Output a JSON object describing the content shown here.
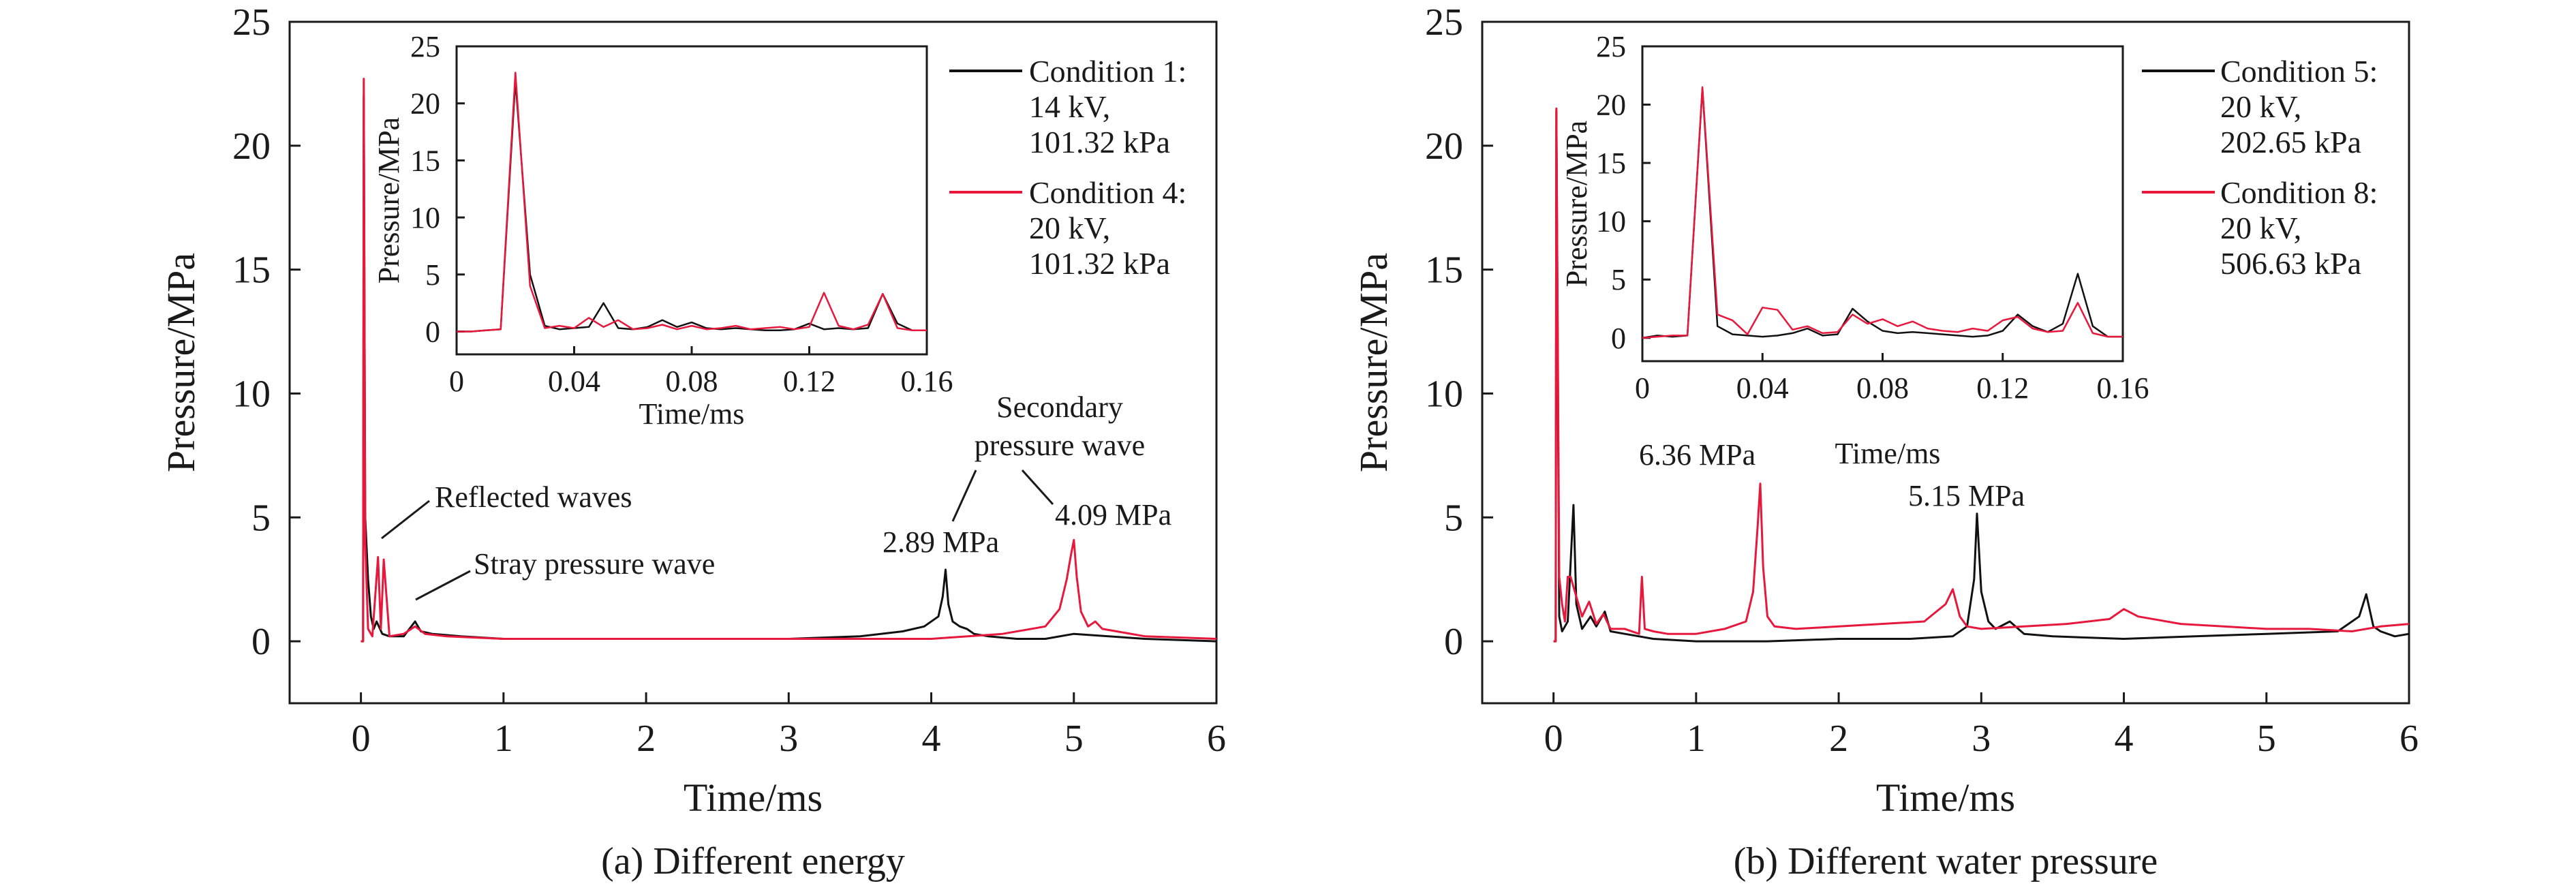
{
  "colors": {
    "condition_black": "#111111",
    "condition_red": "#e8173c",
    "axis": "#1a1a1a"
  },
  "chart_data": [
    {
      "type": "line",
      "caption": "(a) Different energy",
      "xlabel": "Time/ms",
      "ylabel": "Pressure/MPa",
      "xlim": [
        -0.5,
        6
      ],
      "ylim": [
        -2.5,
        25
      ],
      "xticks": [
        "0",
        "1",
        "2",
        "3",
        "4",
        "5",
        "6"
      ],
      "yticks": [
        "0",
        "5",
        "10",
        "15",
        "20",
        "25"
      ],
      "legend_placement": "top-right",
      "series": [
        {
          "name": "Condition 1:",
          "name_lines": [
            "Condition 1:",
            "14 kV,",
            "101.32 kPa"
          ],
          "color": "#111111",
          "x": [
            0,
            0.015,
            0.02,
            0.03,
            0.05,
            0.07,
            0.09,
            0.11,
            0.15,
            0.2,
            0.3,
            0.38,
            0.42,
            0.5,
            0.7,
            1.0,
            1.5,
            2.0,
            2.5,
            3.0,
            3.5,
            3.8,
            3.95,
            4.05,
            4.08,
            4.1,
            4.12,
            4.15,
            4.2,
            4.25,
            4.3,
            4.4,
            4.6,
            4.8,
            5.0,
            5.5,
            6.0
          ],
          "y": [
            0,
            0,
            22.0,
            5.0,
            2.5,
            1.0,
            0.5,
            0.8,
            0.3,
            0.2,
            0.2,
            0.8,
            0.4,
            0.3,
            0.2,
            0.1,
            0.1,
            0.1,
            0.1,
            0.1,
            0.2,
            0.4,
            0.6,
            1.0,
            1.8,
            2.89,
            1.5,
            0.8,
            0.6,
            0.5,
            0.3,
            0.2,
            0.1,
            0.1,
            0.3,
            0.1,
            0.0
          ]
        },
        {
          "name": "Condition 4:",
          "name_lines": [
            "Condition 4:",
            "20 kV,",
            "101.32 kPa"
          ],
          "color": "#e8173c",
          "x": [
            0,
            0.015,
            0.02,
            0.03,
            0.05,
            0.08,
            0.12,
            0.14,
            0.16,
            0.2,
            0.3,
            0.38,
            0.45,
            0.6,
            1.0,
            1.5,
            2.0,
            2.5,
            3.0,
            3.5,
            4.0,
            4.5,
            4.8,
            4.9,
            4.95,
            4.98,
            5.0,
            5.02,
            5.05,
            5.1,
            5.15,
            5.2,
            5.3,
            5.5,
            6.0
          ],
          "y": [
            0,
            0,
            22.7,
            4.0,
            0.5,
            0.2,
            3.4,
            0.5,
            3.3,
            0.2,
            0.3,
            0.6,
            0.3,
            0.2,
            0.1,
            0.1,
            0.1,
            0.1,
            0.1,
            0.1,
            0.1,
            0.3,
            0.6,
            1.3,
            2.5,
            3.5,
            4.09,
            2.6,
            1.2,
            0.6,
            0.8,
            0.5,
            0.4,
            0.2,
            0.1
          ]
        }
      ],
      "annotations": [
        {
          "text": "Reflected waves",
          "x": 0.13,
          "y": 3.8
        },
        {
          "text": "Stray pressure wave",
          "x": 0.38,
          "y": 1.2
        },
        {
          "text": "2.89 MPa",
          "x": 4.1,
          "y": 2.89
        },
        {
          "text": "Secondary",
          "x": null,
          "y": null
        },
        {
          "text": "pressure wave",
          "x": null,
          "y": null
        },
        {
          "text": "4.09 MPa",
          "x": 5.0,
          "y": 4.09
        }
      ],
      "inset": {
        "xlabel": "Time/ms",
        "ylabel": "Pressure/MPa",
        "xlim": [
          0,
          0.16
        ],
        "ylim": [
          -2,
          25
        ],
        "xticks": [
          "0",
          "0.04",
          "0.08",
          "0.12",
          "0.16"
        ],
        "yticks": [
          "0",
          "5",
          "10",
          "15",
          "20",
          "25"
        ],
        "series": [
          {
            "color": "#111111",
            "x": [
              0,
              0.005,
              0.01,
              0.015,
              0.02,
              0.025,
              0.03,
              0.035,
              0.04,
              0.045,
              0.05,
              0.055,
              0.06,
              0.065,
              0.07,
              0.075,
              0.08,
              0.085,
              0.09,
              0.095,
              0.1,
              0.105,
              0.11,
              0.115,
              0.12,
              0.125,
              0.13,
              0.135,
              0.14,
              0.145,
              0.15,
              0.155,
              0.16
            ],
            "y": [
              0,
              0,
              0.1,
              0.2,
              22.0,
              5.0,
              0.5,
              0.2,
              0.3,
              0.4,
              2.5,
              0.3,
              0.2,
              0.4,
              1.0,
              0.4,
              0.8,
              0.3,
              0.2,
              0.3,
              0.2,
              0.1,
              0.1,
              0.2,
              0.7,
              0.2,
              0.3,
              0.2,
              0.3,
              3.3,
              0.7,
              0.1,
              0.1
            ]
          },
          {
            "color": "#e8173c",
            "x": [
              0,
              0.005,
              0.01,
              0.015,
              0.02,
              0.025,
              0.03,
              0.035,
              0.04,
              0.045,
              0.05,
              0.055,
              0.06,
              0.065,
              0.07,
              0.075,
              0.08,
              0.085,
              0.09,
              0.095,
              0.1,
              0.105,
              0.11,
              0.115,
              0.12,
              0.125,
              0.13,
              0.135,
              0.14,
              0.145,
              0.15,
              0.155,
              0.16
            ],
            "y": [
              0,
              0,
              0.1,
              0.2,
              22.7,
              4.0,
              0.3,
              0.5,
              0.3,
              1.2,
              0.4,
              1.0,
              0.2,
              0.3,
              0.6,
              0.2,
              0.5,
              0.2,
              0.3,
              0.5,
              0.2,
              0.3,
              0.4,
              0.2,
              0.4,
              3.4,
              0.5,
              0.2,
              0.6,
              3.3,
              0.3,
              0.1,
              0.1
            ]
          }
        ]
      }
    },
    {
      "type": "line",
      "caption": "(b) Different water pressure",
      "xlabel": "Time/ms",
      "ylabel": "Pressure/MPa",
      "xlim": [
        -0.5,
        6
      ],
      "ylim": [
        -2.5,
        25
      ],
      "xticks": [
        "0",
        "1",
        "2",
        "3",
        "4",
        "5",
        "6"
      ],
      "yticks": [
        "0",
        "5",
        "10",
        "15",
        "20",
        "25"
      ],
      "legend_placement": "top-right",
      "series": [
        {
          "name": "Condition 5:",
          "name_lines": [
            "Condition 5:",
            "20 kV,",
            "202.65 kPa"
          ],
          "color": "#111111",
          "x": [
            0,
            0.015,
            0.02,
            0.04,
            0.06,
            0.1,
            0.14,
            0.16,
            0.2,
            0.26,
            0.3,
            0.36,
            0.4,
            0.5,
            0.7,
            1.0,
            1.5,
            2.0,
            2.5,
            2.8,
            2.9,
            2.95,
            2.97,
            3.0,
            3.05,
            3.1,
            3.2,
            3.3,
            3.5,
            4.0,
            4.5,
            5.0,
            5.5,
            5.65,
            5.7,
            5.75,
            5.8,
            5.9,
            6.0
          ],
          "y": [
            0,
            0,
            21.4,
            1.0,
            0.4,
            0.8,
            5.5,
            1.5,
            0.5,
            1.0,
            0.6,
            1.2,
            0.4,
            0.3,
            0.1,
            0.0,
            0.0,
            0.1,
            0.1,
            0.2,
            0.6,
            2.5,
            5.15,
            2.0,
            0.8,
            0.5,
            0.8,
            0.3,
            0.2,
            0.1,
            0.2,
            0.3,
            0.4,
            1.0,
            1.9,
            0.6,
            0.4,
            0.2,
            0.3
          ]
        },
        {
          "name": "Condition 8:",
          "name_lines": [
            "Condition 8:",
            "20 kV,",
            "506.63 kPa"
          ],
          "color": "#e8173c",
          "x": [
            0,
            0.015,
            0.02,
            0.04,
            0.06,
            0.08,
            0.1,
            0.12,
            0.15,
            0.2,
            0.25,
            0.3,
            0.35,
            0.4,
            0.5,
            0.6,
            0.62,
            0.64,
            0.7,
            0.8,
            1.0,
            1.2,
            1.35,
            1.4,
            1.43,
            1.45,
            1.47,
            1.5,
            1.55,
            1.7,
            2.0,
            2.3,
            2.6,
            2.75,
            2.8,
            2.85,
            2.9,
            3.0,
            3.3,
            3.6,
            3.9,
            4.0,
            4.1,
            4.4,
            4.7,
            5.0,
            5.3,
            5.6,
            5.8,
            6.0
          ],
          "y": [
            0,
            0,
            21.5,
            2.6,
            1.5,
            0.8,
            2.6,
            2.6,
            2.0,
            1.0,
            1.6,
            0.7,
            1.1,
            0.5,
            0.5,
            0.3,
            2.6,
            0.5,
            0.4,
            0.3,
            0.3,
            0.5,
            0.8,
            2.0,
            4.5,
            6.36,
            3.0,
            1.0,
            0.6,
            0.5,
            0.6,
            0.7,
            0.8,
            1.5,
            2.1,
            1.0,
            0.6,
            0.5,
            0.6,
            0.7,
            0.9,
            1.3,
            1.0,
            0.7,
            0.6,
            0.5,
            0.5,
            0.4,
            0.6,
            0.7
          ]
        }
      ],
      "annotations": [
        {
          "text": "6.36 MPa",
          "x": 1.45,
          "y": 6.36
        },
        {
          "text": "5.15 MPa",
          "x": 2.97,
          "y": 5.15
        }
      ],
      "inset": {
        "xlabel": "Time/ms",
        "ylabel": "Pressure/MPa",
        "xlim": [
          0,
          0.16
        ],
        "ylim": [
          -2,
          25
        ],
        "xticks": [
          "0",
          "0.04",
          "0.08",
          "0.12",
          "0.16"
        ],
        "yticks": [
          "0",
          "5",
          "10",
          "15",
          "20",
          "25"
        ],
        "series": [
          {
            "color": "#111111",
            "x": [
              0,
              0.005,
              0.01,
              0.015,
              0.02,
              0.025,
              0.03,
              0.035,
              0.04,
              0.045,
              0.05,
              0.055,
              0.06,
              0.065,
              0.07,
              0.075,
              0.08,
              0.085,
              0.09,
              0.095,
              0.1,
              0.105,
              0.11,
              0.115,
              0.12,
              0.125,
              0.13,
              0.135,
              0.14,
              0.145,
              0.15,
              0.155,
              0.16
            ],
            "y": [
              0,
              0.2,
              0.1,
              0.2,
              21.4,
              1.0,
              0.3,
              0.2,
              0.1,
              0.2,
              0.4,
              0.8,
              0.2,
              0.3,
              2.5,
              1.4,
              0.6,
              0.4,
              0.5,
              0.4,
              0.3,
              0.2,
              0.1,
              0.2,
              0.6,
              2.0,
              1.0,
              0.5,
              1.2,
              5.5,
              1.0,
              0.1,
              0.1
            ]
          },
          {
            "color": "#e8173c",
            "x": [
              0,
              0.005,
              0.01,
              0.015,
              0.02,
              0.025,
              0.03,
              0.035,
              0.04,
              0.045,
              0.05,
              0.055,
              0.06,
              0.065,
              0.07,
              0.075,
              0.08,
              0.085,
              0.09,
              0.095,
              0.1,
              0.105,
              0.11,
              0.115,
              0.12,
              0.125,
              0.13,
              0.135,
              0.14,
              0.145,
              0.15,
              0.155,
              0.16
            ],
            "y": [
              0,
              0.1,
              0.2,
              0.2,
              21.5,
              2.0,
              1.5,
              0.3,
              2.6,
              2.4,
              0.7,
              1.0,
              0.4,
              0.5,
              2.0,
              1.2,
              1.6,
              1.0,
              1.4,
              0.8,
              0.6,
              0.5,
              0.8,
              0.6,
              1.5,
              1.8,
              0.8,
              0.5,
              0.6,
              3.0,
              0.4,
              0.1,
              0.1
            ]
          }
        ]
      }
    }
  ]
}
